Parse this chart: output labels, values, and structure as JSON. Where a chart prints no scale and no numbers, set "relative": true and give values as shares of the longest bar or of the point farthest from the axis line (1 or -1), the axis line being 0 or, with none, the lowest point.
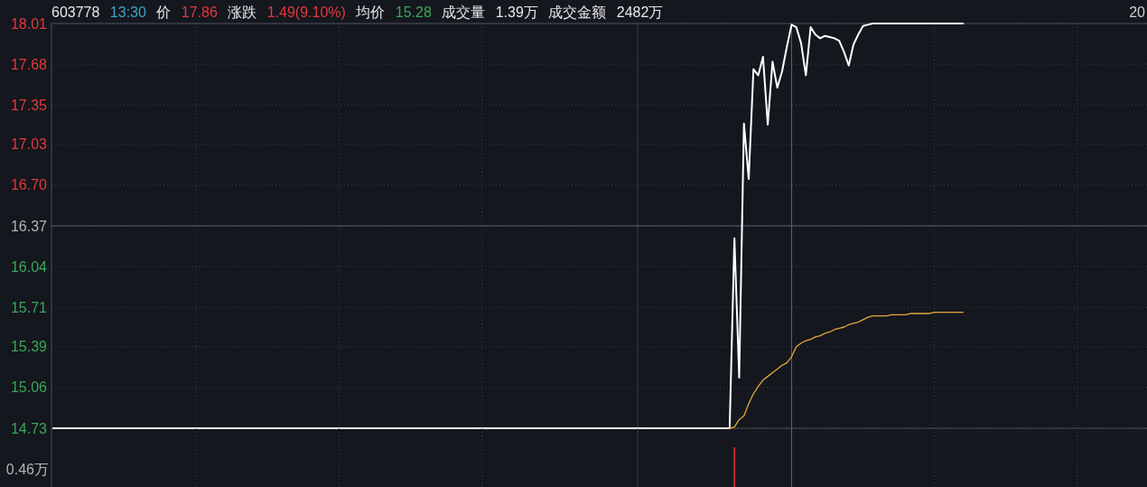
{
  "chart_data": [
    {
      "type": "line",
      "title": "603778 13:30 价 17.86 涨跌 1.49(9.10%) 均价 15.28 成交量 1.39万 成交金额 2482万",
      "categories": [
        null,
        null,
        null,
        null,
        null,
        null,
        null,
        null,
        null,
        null,
        null,
        null,
        null,
        null,
        null,
        null,
        null,
        null,
        null,
        null,
        null,
        null,
        null,
        null,
        null,
        null,
        null,
        null,
        null,
        null,
        null,
        null,
        null,
        null,
        null,
        null,
        null,
        null,
        null,
        null,
        null,
        null,
        null,
        null,
        null,
        null,
        null,
        null,
        null,
        null,
        null,
        null,
        null,
        null,
        null,
        null,
        null,
        null,
        null,
        null,
        null,
        null,
        null,
        null,
        null,
        null,
        null,
        null,
        null,
        null,
        null,
        null,
        null,
        null,
        null,
        null,
        null,
        null,
        null,
        null,
        null,
        null,
        null,
        null,
        null,
        null,
        null,
        null,
        null,
        null,
        null,
        null,
        null,
        null,
        null,
        null,
        null,
        null,
        null,
        null,
        null,
        null,
        null,
        null,
        null,
        null,
        null,
        null,
        null,
        null,
        null,
        null,
        null,
        null,
        null,
        null,
        null,
        null,
        null,
        null,
        null,
        null,
        null,
        null,
        null,
        null,
        null,
        null,
        null,
        null,
        null,
        null,
        null,
        null,
        null,
        null,
        null,
        null,
        null,
        null,
        null,
        null,
        null,
        null,
        null,
        null,
        null,
        null,
        null,
        null,
        null,
        null,
        null,
        null,
        null,
        null,
        null,
        null,
        null,
        null,
        null,
        null,
        null,
        null,
        null,
        null,
        null,
        null,
        null,
        null,
        null,
        null,
        null,
        null,
        null,
        null,
        null,
        null,
        null,
        null,
        null,
        null,
        null,
        null,
        null,
        null,
        null,
        null,
        null,
        null,
        null,
        null,
        null,
        null,
        null,
        null,
        null,
        null,
        null,
        null,
        null,
        null,
        null,
        null,
        null,
        null,
        null,
        null,
        null,
        null,
        null,
        null,
        null,
        null,
        null,
        null,
        null,
        null,
        null,
        null,
        null,
        null,
        null,
        null,
        null,
        null,
        null,
        null,
        null,
        null
      ],
      "series": [
        {
          "color": "#ffffff",
          "values": [
            14.73,
            14.73,
            14.73,
            14.73,
            14.73,
            14.73,
            14.73,
            14.73,
            14.73,
            14.73,
            14.73,
            14.73,
            14.73,
            14.73,
            14.73,
            14.73,
            14.73,
            14.73,
            14.73,
            14.73,
            14.73,
            14.73,
            14.73,
            14.73,
            14.73,
            14.73,
            14.73,
            14.73,
            14.73,
            14.73,
            14.73,
            14.73,
            14.73,
            14.73,
            14.73,
            14.73,
            14.73,
            14.73,
            14.73,
            14.73,
            14.73,
            14.73,
            14.73,
            14.73,
            14.73,
            14.73,
            14.73,
            14.73,
            14.73,
            14.73,
            14.73,
            14.73,
            14.73,
            14.73,
            14.73,
            14.73,
            14.73,
            14.73,
            14.73,
            14.73,
            14.73,
            14.73,
            14.73,
            14.73,
            14.73,
            14.73,
            14.73,
            14.73,
            14.73,
            14.73,
            14.73,
            14.73,
            14.73,
            14.73,
            14.73,
            14.73,
            14.73,
            14.73,
            14.73,
            14.73,
            14.73,
            14.73,
            14.73,
            14.73,
            14.73,
            14.73,
            14.73,
            14.73,
            14.73,
            14.73,
            14.73,
            14.73,
            14.73,
            14.73,
            14.73,
            14.73,
            14.73,
            14.73,
            14.73,
            14.73,
            14.73,
            14.73,
            14.73,
            14.73,
            14.73,
            14.73,
            14.73,
            14.73,
            14.73,
            14.73,
            14.73,
            14.73,
            14.73,
            14.73,
            14.73,
            14.73,
            14.73,
            14.73,
            14.73,
            14.73,
            14.73,
            14.73,
            14.73,
            14.73,
            14.73,
            14.73,
            14.73,
            14.73,
            14.73,
            14.73,
            14.73,
            14.73,
            14.73,
            14.73,
            14.73,
            14.73,
            14.73,
            14.73,
            14.73,
            14.73,
            14.73,
            14.73,
            14.73,
            16.27,
            15.14,
            17.2,
            16.75,
            17.64,
            17.59,
            17.74,
            17.19,
            17.7,
            17.49,
            17.62,
            17.82,
            18.0,
            17.98,
            17.85,
            17.59,
            17.98,
            17.92,
            17.89,
            17.91,
            17.9,
            17.89,
            17.87,
            17.78,
            17.67,
            17.84,
            17.92,
            17.99,
            18.0,
            18.01,
            18.01,
            18.01,
            18.01,
            18.01,
            18.01,
            18.01,
            18.01,
            18.01,
            18.01,
            18.01,
            18.01,
            18.01,
            18.01,
            18.01,
            18.01,
            18.01,
            18.01,
            18.01,
            18.01,
            null,
            null,
            null,
            null,
            null,
            null,
            null,
            null,
            null,
            null,
            null,
            null,
            null,
            null,
            null,
            null,
            null,
            null,
            null,
            null,
            null,
            null,
            null,
            null,
            null,
            null,
            null,
            null,
            null,
            null,
            null,
            null,
            null,
            null,
            null,
            null,
            null,
            null
          ]
        },
        {
          "color": "#e2a73b",
          "values": [
            null,
            null,
            null,
            null,
            null,
            null,
            null,
            null,
            null,
            null,
            null,
            null,
            null,
            null,
            null,
            null,
            null,
            null,
            null,
            null,
            null,
            null,
            null,
            null,
            null,
            null,
            null,
            null,
            null,
            null,
            null,
            null,
            null,
            null,
            null,
            null,
            null,
            null,
            null,
            null,
            null,
            null,
            null,
            null,
            null,
            null,
            null,
            null,
            null,
            null,
            null,
            null,
            null,
            null,
            null,
            null,
            null,
            null,
            null,
            null,
            null,
            null,
            null,
            null,
            null,
            null,
            null,
            null,
            null,
            null,
            null,
            null,
            null,
            null,
            null,
            null,
            null,
            null,
            null,
            null,
            null,
            null,
            null,
            null,
            null,
            null,
            null,
            null,
            null,
            null,
            null,
            null,
            null,
            null,
            null,
            null,
            null,
            null,
            null,
            null,
            null,
            null,
            null,
            null,
            null,
            null,
            null,
            null,
            null,
            null,
            null,
            null,
            null,
            null,
            null,
            null,
            null,
            null,
            null,
            null,
            null,
            null,
            null,
            null,
            null,
            null,
            null,
            null,
            null,
            null,
            null,
            null,
            null,
            null,
            null,
            null,
            null,
            null,
            null,
            null,
            null,
            null,
            14.73,
            14.74,
            14.8,
            14.83,
            14.93,
            15.01,
            15.07,
            15.12,
            15.15,
            15.18,
            15.21,
            15.24,
            15.26,
            15.31,
            15.39,
            15.42,
            15.44,
            15.45,
            15.47,
            15.48,
            15.5,
            15.51,
            15.53,
            15.54,
            15.55,
            15.57,
            15.58,
            15.59,
            15.61,
            15.63,
            15.64,
            15.64,
            15.64,
            15.64,
            15.65,
            15.65,
            15.65,
            15.65,
            15.66,
            15.66,
            15.66,
            15.66,
            15.66,
            15.67,
            15.67,
            15.67,
            15.67,
            15.67,
            15.67,
            15.67,
            null,
            null,
            null,
            null,
            null,
            null,
            null,
            null,
            null,
            null,
            null,
            null,
            null,
            null,
            null,
            null,
            null,
            null,
            null,
            null,
            null,
            null,
            null,
            null,
            null,
            null,
            null,
            null,
            null,
            null,
            null,
            null,
            null,
            null,
            null,
            null,
            null,
            null
          ]
        }
      ],
      "ylim": [
        14.73,
        18.01
      ],
      "yticks": [
        18.01,
        17.68,
        17.35,
        17.03,
        {
          "value": 16.7,
          "label": "16.70"
        },
        16.37,
        16.04,
        15.71,
        15.39,
        15.06,
        14.73
      ],
      "grid": true,
      "tick_labels": "y",
      "ref_lines": [
        {
          "axis": "y",
          "value": 16.37,
          "color": "#5b606b",
          "line_style": "solid"
        }
      ],
      "annotations": [
        "20"
      ]
    },
    {
      "type": "bar",
      "categories": [
        null,
        null,
        null,
        null,
        null,
        null,
        null,
        null,
        null,
        null,
        null,
        null,
        null,
        null,
        null,
        null,
        null,
        null,
        null,
        null,
        null,
        null,
        null,
        null,
        null,
        null,
        null,
        null,
        null,
        null,
        null,
        null,
        null,
        null,
        null,
        null,
        null,
        null,
        null,
        null,
        null,
        null,
        null,
        null,
        null,
        null,
        null,
        null,
        null,
        null,
        null,
        null,
        null,
        null,
        null,
        null,
        null,
        null,
        null,
        null,
        null,
        null,
        null,
        null,
        null,
        null,
        null,
        null,
        null,
        null,
        null,
        null,
        null,
        null,
        null,
        null,
        null,
        null,
        null,
        null,
        null,
        null,
        null,
        null,
        null,
        null,
        null,
        null,
        null,
        null,
        null,
        null,
        null,
        null,
        null,
        null,
        null,
        null,
        null,
        null,
        null,
        null,
        null,
        null,
        null,
        null,
        null,
        null,
        null,
        null,
        null,
        null,
        null,
        null,
        null,
        null,
        null,
        null,
        null,
        null,
        null,
        null,
        null,
        null,
        null,
        null,
        null,
        null,
        null,
        null,
        null,
        null,
        null,
        null,
        null,
        null,
        null,
        null,
        null,
        null,
        null,
        null,
        null,
        null,
        null,
        null,
        null,
        null,
        null,
        null,
        null,
        null,
        null,
        null,
        null,
        null,
        null,
        null,
        null,
        null,
        null,
        null,
        null,
        null,
        null,
        null,
        null,
        null,
        null,
        null,
        null,
        null,
        null,
        null,
        null,
        null,
        null,
        null,
        null,
        null,
        null,
        null,
        null,
        null,
        null,
        null,
        null,
        null,
        null,
        null,
        null,
        null,
        null,
        null,
        null,
        null,
        null,
        null,
        null,
        null,
        null,
        null,
        null,
        null,
        null,
        null,
        null,
        null,
        null,
        null,
        null,
        null,
        null,
        null,
        null,
        null,
        null,
        null,
        null,
        null,
        null,
        null,
        null,
        null,
        null,
        null,
        null,
        null,
        null,
        null
      ],
      "values": [
        null,
        null,
        null,
        null,
        null,
        null,
        null,
        null,
        null,
        null,
        null,
        null,
        null,
        null,
        null,
        null,
        null,
        null,
        null,
        null,
        null,
        null,
        null,
        null,
        null,
        null,
        null,
        null,
        null,
        null,
        null,
        null,
        null,
        null,
        null,
        null,
        null,
        null,
        null,
        null,
        null,
        null,
        null,
        null,
        null,
        null,
        null,
        null,
        null,
        null,
        null,
        null,
        null,
        null,
        null,
        null,
        null,
        null,
        null,
        null,
        null,
        null,
        null,
        null,
        null,
        null,
        null,
        null,
        null,
        null,
        null,
        null,
        null,
        null,
        null,
        null,
        null,
        null,
        null,
        null,
        null,
        null,
        null,
        null,
        null,
        null,
        null,
        null,
        null,
        null,
        null,
        null,
        null,
        null,
        null,
        null,
        null,
        null,
        null,
        null,
        null,
        null,
        null,
        null,
        null,
        null,
        null,
        null,
        null,
        null,
        null,
        null,
        null,
        null,
        null,
        null,
        null,
        null,
        null,
        null,
        null,
        null,
        null,
        null,
        null,
        null,
        null,
        null,
        null,
        null,
        null,
        null,
        null,
        null,
        null,
        null,
        null,
        null,
        null,
        null,
        null,
        null,
        null,
        1,
        null,
        null,
        null,
        null,
        null,
        null,
        null,
        null,
        null,
        null,
        null,
        null,
        null,
        null,
        null,
        null,
        null,
        null,
        null,
        null,
        null,
        null,
        null,
        null,
        null,
        null,
        null,
        null,
        null,
        null,
        null,
        null,
        null,
        null,
        null,
        null,
        null,
        null,
        null,
        null,
        null,
        null,
        null,
        null,
        null,
        null,
        null,
        null,
        null,
        null,
        null,
        null,
        null,
        null,
        null,
        null,
        null,
        null,
        null,
        null,
        null,
        null,
        null,
        null,
        null,
        null,
        null,
        null,
        null,
        null,
        null,
        null,
        null,
        null,
        null,
        null,
        null,
        null,
        null,
        null,
        null,
        null,
        null,
        null,
        null,
        null
      ],
      "color": "#c7262f",
      "relative": true,
      "grid": "x",
      "tick_labels": false,
      "annotations": [
        "0.46万"
      ]
    }
  ]
}
